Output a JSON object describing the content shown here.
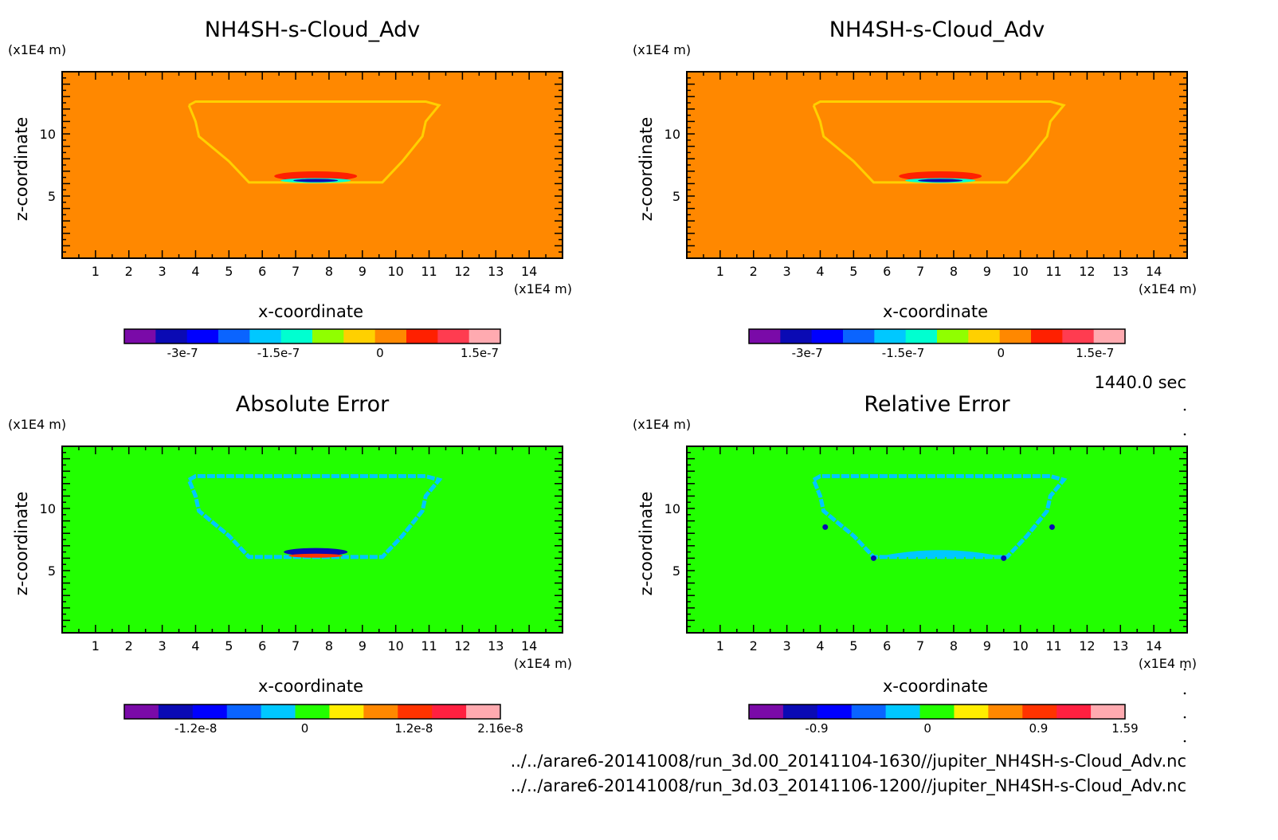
{
  "time_label": "1440.0 sec",
  "files": [
    "../../arare6-20141008/run_3d.00_20141104-1630//jupiter_NH4SH-s-Cloud_Adv.nc",
    "../../arare6-20141008/run_3d.03_20141106-1200//jupiter_NH4SH-s-Cloud_Adv.nc"
  ],
  "chart_data": [
    {
      "type": "heatmap",
      "title": "NH4SH-s-Cloud_Adv",
      "xlabel": "x-coordinate",
      "ylabel": "z-coordinate",
      "x_unit": "(x1E4 m)",
      "y_unit": "(x1E4 m)",
      "xlim": [
        0,
        15
      ],
      "ylim": [
        0,
        15
      ],
      "xticks": [
        "1",
        "2",
        "3",
        "4",
        "5",
        "6",
        "7",
        "8",
        "9",
        "10",
        "11",
        "12",
        "13",
        "14"
      ],
      "yticks": [
        "5",
        "10"
      ],
      "background": "#ff8800",
      "colorbar": {
        "colors": [
          "#7a0aa8",
          "#0a0ab4",
          "#0000ff",
          "#0a64ff",
          "#00c8ff",
          "#00ffd0",
          "#90ff00",
          "#ffd000",
          "#ff8800",
          "#ff2000",
          "#ff3c50",
          "#ffaab0"
        ],
        "tick_labels": [
          "-3e-7",
          "-1.5e-7",
          "0",
          "1.5e-7"
        ]
      }
    },
    {
      "type": "heatmap",
      "title": "NH4SH-s-Cloud_Adv",
      "xlabel": "x-coordinate",
      "ylabel": "z-coordinate",
      "x_unit": "(x1E4 m)",
      "y_unit": "(x1E4 m)",
      "xlim": [
        0,
        15
      ],
      "ylim": [
        0,
        15
      ],
      "xticks": [
        "1",
        "2",
        "3",
        "4",
        "5",
        "6",
        "7",
        "8",
        "9",
        "10",
        "11",
        "12",
        "13",
        "14"
      ],
      "yticks": [
        "5",
        "10"
      ],
      "background": "#ff8800",
      "colorbar": {
        "colors": [
          "#7a0aa8",
          "#0a0ab4",
          "#0000ff",
          "#0a64ff",
          "#00c8ff",
          "#00ffd0",
          "#90ff00",
          "#ffd000",
          "#ff8800",
          "#ff2000",
          "#ff3c50",
          "#ffaab0"
        ],
        "tick_labels": [
          "-3e-7",
          "-1.5e-7",
          "0",
          "1.5e-7"
        ]
      }
    },
    {
      "type": "heatmap",
      "title": "Absolute Error",
      "xlabel": "x-coordinate",
      "ylabel": "z-coordinate",
      "x_unit": "(x1E4 m)",
      "y_unit": "(x1E4 m)",
      "xlim": [
        0,
        15
      ],
      "ylim": [
        0,
        15
      ],
      "xticks": [
        "1",
        "2",
        "3",
        "4",
        "5",
        "6",
        "7",
        "8",
        "9",
        "10",
        "11",
        "12",
        "13",
        "14"
      ],
      "yticks": [
        "5",
        "10"
      ],
      "background": "#22ff00",
      "colorbar": {
        "colors": [
          "#7a0aa8",
          "#0a0ab4",
          "#0000ff",
          "#0a64ff",
          "#00c8ff",
          "#22ff00",
          "#ffee00",
          "#ff8800",
          "#ff3300",
          "#ff2040",
          "#ffaab0"
        ],
        "tick_labels": [
          "-1.2e-8",
          "0",
          "1.2e-8",
          "2.16e-8"
        ]
      }
    },
    {
      "type": "heatmap",
      "title": "Relative Error",
      "xlabel": "x-coordinate",
      "ylabel": "z-coordinate",
      "x_unit": "(x1E4 m)",
      "y_unit": "(x1E4 m)",
      "xlim": [
        0,
        15
      ],
      "ylim": [
        0,
        15
      ],
      "xticks": [
        "1",
        "2",
        "3",
        "4",
        "5",
        "6",
        "7",
        "8",
        "9",
        "10",
        "11",
        "12",
        "13",
        "14"
      ],
      "yticks": [
        "5",
        "10"
      ],
      "background": "#22ff00",
      "colorbar": {
        "colors": [
          "#7a0aa8",
          "#0a0ab4",
          "#0000ff",
          "#0a64ff",
          "#00c8ff",
          "#22ff00",
          "#ffee00",
          "#ff8800",
          "#ff3300",
          "#ff2040",
          "#ffaab0"
        ],
        "tick_labels": [
          "-0.9",
          "0",
          "0.9",
          "1.59"
        ]
      }
    }
  ]
}
